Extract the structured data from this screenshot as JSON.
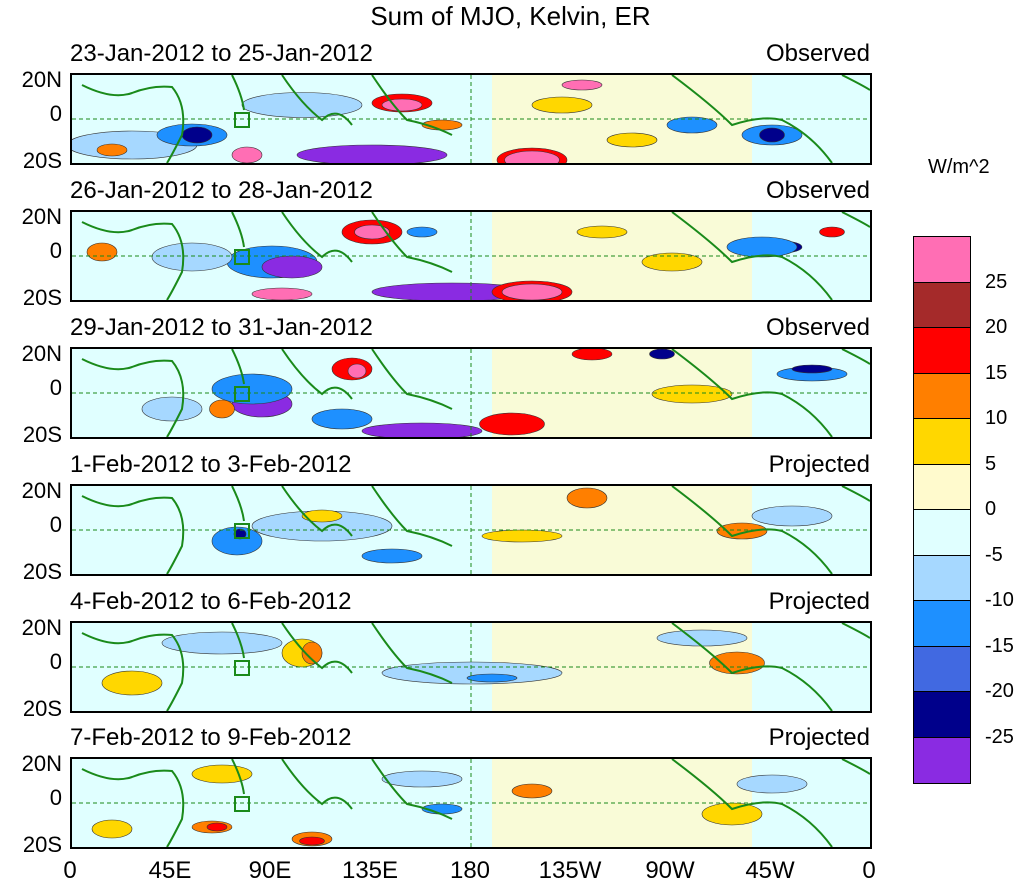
{
  "title": "Sum of MJO, Kelvin, ER",
  "units": "W/m^2",
  "lat_labels": [
    "20N",
    "0",
    "20S"
  ],
  "lon_labels": [
    "0",
    "45E",
    "90E",
    "135E",
    "180",
    "135W",
    "90W",
    "45W",
    "0"
  ],
  "panels": [
    {
      "date": "23-Jan-2012 to 25-Jan-2012",
      "status": "Observed"
    },
    {
      "date": "26-Jan-2012 to 28-Jan-2012",
      "status": "Observed"
    },
    {
      "date": "29-Jan-2012 to 31-Jan-2012",
      "status": "Observed"
    },
    {
      "date": "1-Feb-2012 to 3-Feb-2012",
      "status": "Projected"
    },
    {
      "date": "4-Feb-2012 to 6-Feb-2012",
      "status": "Projected"
    },
    {
      "date": "7-Feb-2012 to 9-Feb-2012",
      "status": "Projected"
    }
  ],
  "legend": {
    "labels": [
      "25",
      "20",
      "15",
      "10",
      "5",
      "0",
      "-5",
      "-10",
      "-15",
      "-20",
      "-25"
    ],
    "colors": [
      "#ff6eb4",
      "#a52a2a",
      "#ff0000",
      "#ff7f00",
      "#ffd700",
      "#fffacd",
      "#e0ffff",
      "#a6d8ff",
      "#1e90ff",
      "#4169e1",
      "#00008b",
      "#8a2be2"
    ]
  }
}
